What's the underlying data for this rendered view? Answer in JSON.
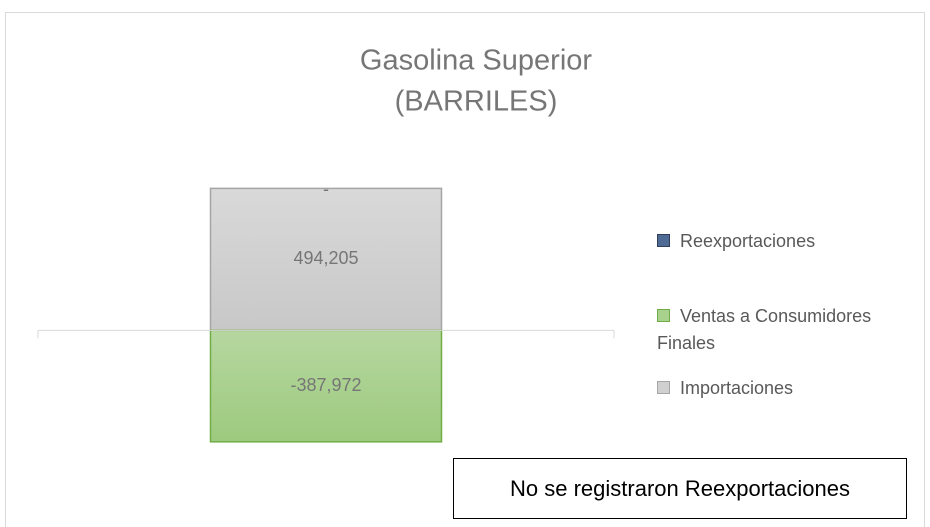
{
  "chart_data": {
    "type": "stacked_bar",
    "title": "Gasolina Superior",
    "subtitle": "(BARRILES)",
    "categories": [
      null
    ],
    "series": [
      {
        "name": "Reexportaciones",
        "color": "#4f6a94",
        "values": [
          0
        ],
        "value_labels": [
          "-"
        ]
      },
      {
        "name": "Ventas a Consumidores Finales",
        "color": "#a9d18e",
        "values": [
          -387972
        ],
        "value_labels": [
          "-387,972"
        ]
      },
      {
        "name": "Importaciones",
        "color": "#d0d0d0",
        "values": [
          494205
        ],
        "value_labels": [
          "494,205"
        ]
      }
    ],
    "ylim": [
      -500000,
      600000
    ],
    "legend": "right",
    "annotation": "No se registraron Reexportaciones"
  }
}
